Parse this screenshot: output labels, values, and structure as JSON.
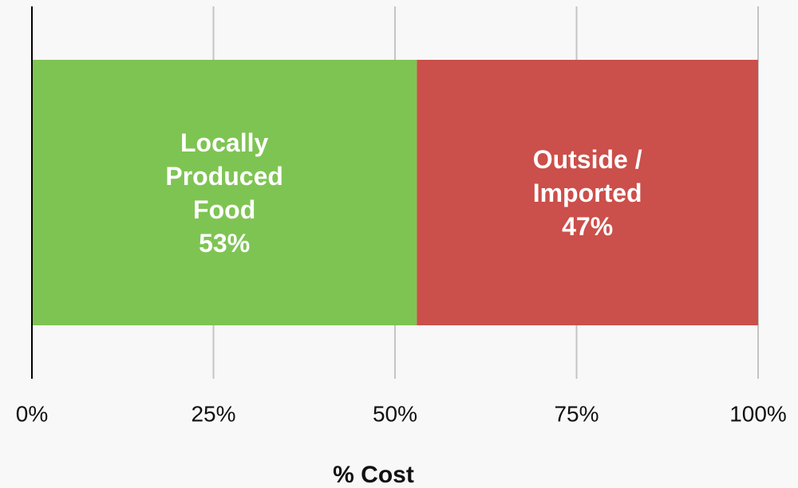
{
  "chart_data": {
    "type": "stacked_barh",
    "categories": [
      null
    ],
    "series": [
      {
        "name": "Locally Produced Food",
        "color": "#7ec453",
        "values": [
          53
        ],
        "value_labels": [
          "53%"
        ]
      },
      {
        "name": "Outside / Imported",
        "color": "#cb4f4a",
        "values": [
          47
        ],
        "value_labels": [
          "47%"
        ]
      }
    ],
    "xlabel": "% Cost",
    "xlim": [
      0,
      100
    ],
    "xticks": [
      {
        "value": 0,
        "label": "0%"
      },
      {
        "value": 25,
        "label": "25%"
      },
      {
        "value": 50,
        "label": "50%"
      },
      {
        "value": 75,
        "label": "75%"
      },
      {
        "value": 100,
        "label": "100%"
      }
    ],
    "grid": true
  }
}
